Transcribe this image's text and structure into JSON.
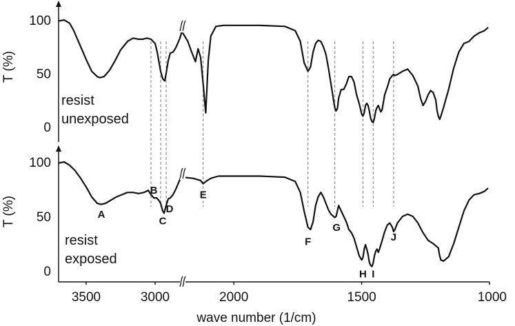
{
  "chart_data": {
    "type": "line",
    "xlabel": "wave number (1/cm)",
    "x_ticks": [
      "3500",
      "3000",
      "2000",
      "1500",
      "1000"
    ],
    "x_tick_values": [
      3500,
      3000,
      2000,
      1500,
      1000
    ],
    "axis_break": {
      "from": 2800,
      "to": 2200
    },
    "guides": [
      3030,
      2960,
      2920,
      2120,
      1710,
      1605,
      1495,
      1455,
      1375
    ],
    "panels": [
      {
        "label": "resist\nunexposed",
        "ylabel": "T (%)",
        "y_ticks": [
          "100",
          "50",
          "0"
        ],
        "y_tick_values": [
          100,
          50,
          0
        ],
        "ylim": [
          -10,
          107
        ],
        "series": {
          "x": [
            3700,
            3660,
            3620,
            3590,
            3550,
            3500,
            3460,
            3420,
            3400,
            3370,
            3330,
            3290,
            3250,
            3200,
            3160,
            3120,
            3090,
            3060,
            3030,
            3000,
            2985,
            2960,
            2945,
            2930,
            2920,
            2905,
            2890,
            2870,
            2850,
            2820,
            2800,
            2200,
            2180,
            2165,
            2150,
            2140,
            2130,
            2120,
            2110,
            2100,
            2090,
            2070,
            2040,
            2000,
            1900,
            1800,
            1760,
            1740,
            1725,
            1710,
            1700,
            1690,
            1680,
            1670,
            1660,
            1650,
            1640,
            1630,
            1620,
            1610,
            1605,
            1600,
            1595,
            1590,
            1580,
            1570,
            1560,
            1550,
            1540,
            1530,
            1520,
            1510,
            1500,
            1495,
            1490,
            1485,
            1480,
            1475,
            1470,
            1465,
            1460,
            1455,
            1450,
            1445,
            1440,
            1435,
            1430,
            1425,
            1420,
            1415,
            1410,
            1400,
            1390,
            1380,
            1375,
            1370,
            1360,
            1340,
            1320,
            1300,
            1280,
            1270,
            1260,
            1250,
            1240,
            1230,
            1220,
            1210,
            1205,
            1200,
            1195,
            1190,
            1180,
            1160,
            1140,
            1120,
            1100,
            1080,
            1060,
            1040,
            1020,
            1005
          ],
          "y": [
            99,
            100,
            97,
            90,
            78,
            63,
            52,
            47,
            46,
            47,
            53,
            62,
            72,
            80,
            83,
            82,
            82,
            83,
            82,
            78,
            70,
            52,
            45,
            43,
            50,
            62,
            69,
            70,
            74,
            83,
            92,
            88,
            80,
            70,
            61,
            73,
            65,
            40,
            13,
            62,
            85,
            94,
            95,
            95,
            95,
            94,
            90,
            80,
            60,
            52,
            56,
            70,
            78,
            81,
            80,
            75,
            68,
            55,
            40,
            25,
            18,
            15,
            17,
            27,
            35,
            35,
            40,
            47,
            47,
            42,
            30,
            22,
            12,
            10,
            13,
            20,
            22,
            20,
            15,
            8,
            5,
            4,
            8,
            15,
            18,
            20,
            17,
            14,
            16,
            23,
            30,
            37,
            45,
            48,
            49,
            48,
            49,
            52,
            54,
            48,
            38,
            27,
            20,
            24,
            30,
            34,
            32,
            25,
            15,
            10,
            7,
            10,
            18,
            35,
            55,
            70,
            78,
            80,
            85,
            88,
            90,
            93
          ]
        }
      },
      {
        "label": "resist\nexposed",
        "ylabel": "T (%)",
        "y_ticks": [
          "100",
          "50",
          "0"
        ],
        "y_tick_values": [
          100,
          50,
          0
        ],
        "ylim": [
          -10,
          107
        ],
        "series": {
          "x": [
            3700,
            3660,
            3620,
            3580,
            3540,
            3500,
            3460,
            3420,
            3390,
            3360,
            3320,
            3280,
            3240,
            3200,
            3160,
            3120,
            3080,
            3050,
            3030,
            3010,
            2990,
            2975,
            2960,
            2945,
            2935,
            2920,
            2905,
            2890,
            2870,
            2850,
            2820,
            2800,
            2200,
            2160,
            2130,
            2120,
            2110,
            2090,
            2060,
            2000,
            1900,
            1800,
            1760,
            1740,
            1725,
            1710,
            1700,
            1690,
            1680,
            1670,
            1660,
            1650,
            1640,
            1630,
            1620,
            1610,
            1605,
            1600,
            1590,
            1580,
            1570,
            1560,
            1550,
            1540,
            1530,
            1520,
            1510,
            1500,
            1495,
            1490,
            1485,
            1480,
            1475,
            1470,
            1465,
            1460,
            1455,
            1450,
            1445,
            1440,
            1435,
            1430,
            1420,
            1410,
            1400,
            1390,
            1380,
            1375,
            1370,
            1360,
            1340,
            1320,
            1300,
            1280,
            1260,
            1240,
            1220,
            1200,
            1195,
            1190,
            1180,
            1160,
            1140,
            1120,
            1100,
            1080,
            1060,
            1040,
            1020,
            1005
          ],
          "y": [
            99,
            100,
            97,
            92,
            85,
            77,
            68,
            62,
            61,
            62,
            65,
            68,
            70,
            72,
            72,
            71,
            72,
            74,
            70,
            67,
            67,
            65,
            62,
            55,
            53,
            60,
            66,
            67,
            70,
            75,
            84,
            90,
            86,
            85,
            83,
            80,
            82,
            85,
            87,
            87,
            87,
            86,
            82,
            72,
            55,
            40,
            38,
            45,
            60,
            68,
            72,
            68,
            62,
            56,
            52,
            50,
            49,
            50,
            60,
            55,
            50,
            45,
            38,
            35,
            30,
            22,
            14,
            10,
            12,
            20,
            24,
            20,
            15,
            8,
            5,
            4,
            7,
            14,
            18,
            20,
            17,
            20,
            28,
            36,
            42,
            44,
            40,
            36,
            38,
            44,
            50,
            52,
            50,
            44,
            35,
            28,
            25,
            21,
            14,
            10,
            9,
            13,
            25,
            40,
            55,
            65,
            70,
            71,
            73,
            76
          ]
        }
      }
    ],
    "peak_labels": [
      {
        "text": "A",
        "x": 3390,
        "y": 52
      },
      {
        "text": "B",
        "x": 3010,
        "y": 74
      },
      {
        "text": "C",
        "x": 2945,
        "y": 46
      },
      {
        "text": "D",
        "x": 2895,
        "y": 57
      },
      {
        "text": "E",
        "x": 2120,
        "y": 70
      },
      {
        "text": "F",
        "x": 1710,
        "y": 27
      },
      {
        "text": "G",
        "x": 1598,
        "y": 40
      },
      {
        "text": "H",
        "x": 1495,
        "y": -3
      },
      {
        "text": "I",
        "x": 1455,
        "y": -3
      },
      {
        "text": "J",
        "x": 1375,
        "y": 31
      }
    ]
  }
}
